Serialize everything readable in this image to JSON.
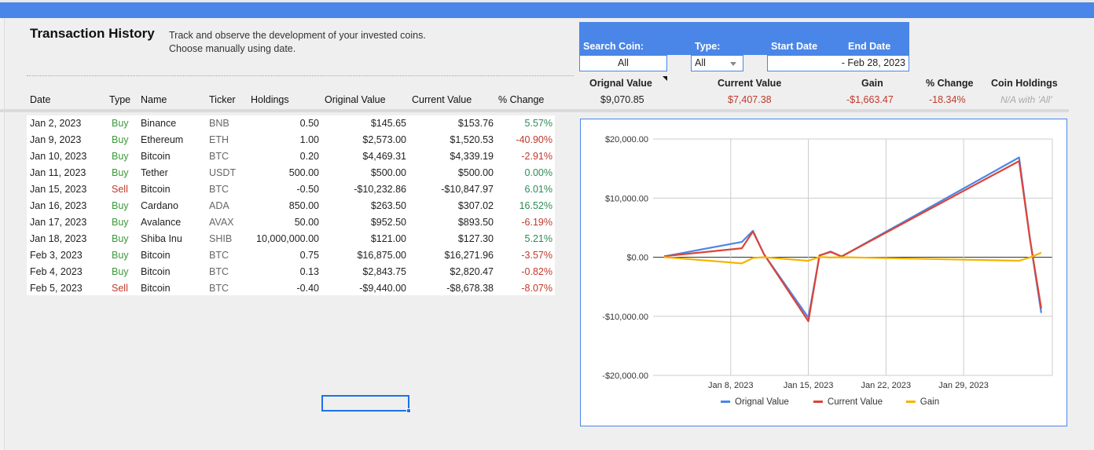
{
  "header": {
    "title": "Transaction History",
    "subtitle_line1": "Track and observe the development of your invested coins.",
    "subtitle_line2": "Choose manually using date."
  },
  "columns": [
    "Date",
    "Type",
    "Name",
    "Ticker",
    "Holdings",
    "Original Value",
    "Current Value",
    "% Change"
  ],
  "rows": [
    {
      "date": "Jan 2, 2023",
      "type": "Buy",
      "name": "Binance",
      "ticker": "BNB",
      "holdings": "0.50",
      "orig": "$145.65",
      "curr": "$153.76",
      "pct": "5.57%"
    },
    {
      "date": "Jan 9, 2023",
      "type": "Buy",
      "name": "Ethereum",
      "ticker": "ETH",
      "holdings": "1.00",
      "orig": "$2,573.00",
      "curr": "$1,520.53",
      "pct": "-40.90%"
    },
    {
      "date": "Jan 10, 2023",
      "type": "Buy",
      "name": "Bitcoin",
      "ticker": "BTC",
      "holdings": "0.20",
      "orig": "$4,469.31",
      "curr": "$4,339.19",
      "pct": "-2.91%"
    },
    {
      "date": "Jan 11, 2023",
      "type": "Buy",
      "name": "Tether",
      "ticker": "USDT",
      "holdings": "500.00",
      "orig": "$500.00",
      "curr": "$500.00",
      "pct": "0.00%"
    },
    {
      "date": "Jan 15, 2023",
      "type": "Sell",
      "name": "Bitcoin",
      "ticker": "BTC",
      "holdings": "-0.50",
      "orig": "-$10,232.86",
      "curr": "-$10,847.97",
      "pct": "6.01%"
    },
    {
      "date": "Jan 16, 2023",
      "type": "Buy",
      "name": "Cardano",
      "ticker": "ADA",
      "holdings": "850.00",
      "orig": "$263.50",
      "curr": "$307.02",
      "pct": "16.52%"
    },
    {
      "date": "Jan 17, 2023",
      "type": "Buy",
      "name": "Avalance",
      "ticker": "AVAX",
      "holdings": "50.00",
      "orig": "$952.50",
      "curr": "$893.50",
      "pct": "-6.19%"
    },
    {
      "date": "Jan 18, 2023",
      "type": "Buy",
      "name": "Shiba Inu",
      "ticker": "SHIB",
      "holdings": "10,000,000.00",
      "orig": "$121.00",
      "curr": "$127.30",
      "pct": "5.21%"
    },
    {
      "date": "Feb 3, 2023",
      "type": "Buy",
      "name": "Bitcoin",
      "ticker": "BTC",
      "holdings": "0.75",
      "orig": "$16,875.00",
      "curr": "$16,271.96",
      "pct": "-3.57%"
    },
    {
      "date": "Feb 4, 2023",
      "type": "Buy",
      "name": "Bitcoin",
      "ticker": "BTC",
      "holdings": "0.13",
      "orig": "$2,843.75",
      "curr": "$2,820.47",
      "pct": "-0.82%"
    },
    {
      "date": "Feb 5, 2023",
      "type": "Sell",
      "name": "Bitcoin",
      "ticker": "BTC",
      "holdings": "-0.40",
      "orig": "-$9,440.00",
      "curr": "-$8,678.38",
      "pct": "-8.07%"
    }
  ],
  "filters": {
    "search_coin_label": "Search Coin:",
    "search_coin_value": "All",
    "type_label": "Type:",
    "type_value": "All",
    "start_date_label": "Start Date",
    "end_date_label": "End Date",
    "end_date_value": "- Feb 28, 2023"
  },
  "summary": {
    "orig_label": "Orignal Value",
    "orig_value": "$9,070.85",
    "curr_label": "Current Value",
    "curr_value": "$7,407.38",
    "gain_label": "Gain",
    "gain_value": "-$1,663.47",
    "pct_label": "% Change",
    "pct_value": "-18.34%",
    "holdings_label": "Coin Holdings",
    "holdings_value": "N/A with 'All'"
  },
  "colors": {
    "header_blue": "#4a86e8",
    "orig_line": "#4a86e8",
    "curr_line": "#db4437",
    "gain_line": "#f4b400",
    "positive": "#2e8b57",
    "negative": "#c0392b"
  },
  "chart_data": {
    "type": "line",
    "x": [
      "2023-01-02",
      "2023-01-09",
      "2023-01-10",
      "2023-01-11",
      "2023-01-15",
      "2023-01-16",
      "2023-01-17",
      "2023-01-18",
      "2023-02-03",
      "2023-02-04",
      "2023-02-05"
    ],
    "series": [
      {
        "name": "Orignal Value",
        "values": [
          145.65,
          2573.0,
          4469.31,
          500.0,
          -10232.86,
          263.5,
          952.5,
          121.0,
          16875.0,
          2843.75,
          -9440.0
        ]
      },
      {
        "name": "Current Value",
        "values": [
          153.76,
          1520.53,
          4339.19,
          500.0,
          -10847.97,
          307.02,
          893.5,
          127.3,
          16271.96,
          2820.47,
          -8678.38
        ]
      },
      {
        "name": "Gain",
        "values": [
          8.11,
          -1052.47,
          -130.12,
          0.0,
          -615.11,
          43.52,
          -59.0,
          6.3,
          -603.04,
          -23.28,
          761.62
        ]
      }
    ],
    "ylim": [
      -20000,
      20000
    ],
    "yticks": [
      "$20,000.00",
      "$10,000.00",
      "$0.00",
      "-$10,000.00",
      "-$20,000.00"
    ],
    "xticks": [
      "Jan 8, 2023",
      "Jan 15, 2023",
      "Jan 22, 2023",
      "Jan 29, 2023"
    ],
    "legend": "bottom",
    "grid": true
  }
}
